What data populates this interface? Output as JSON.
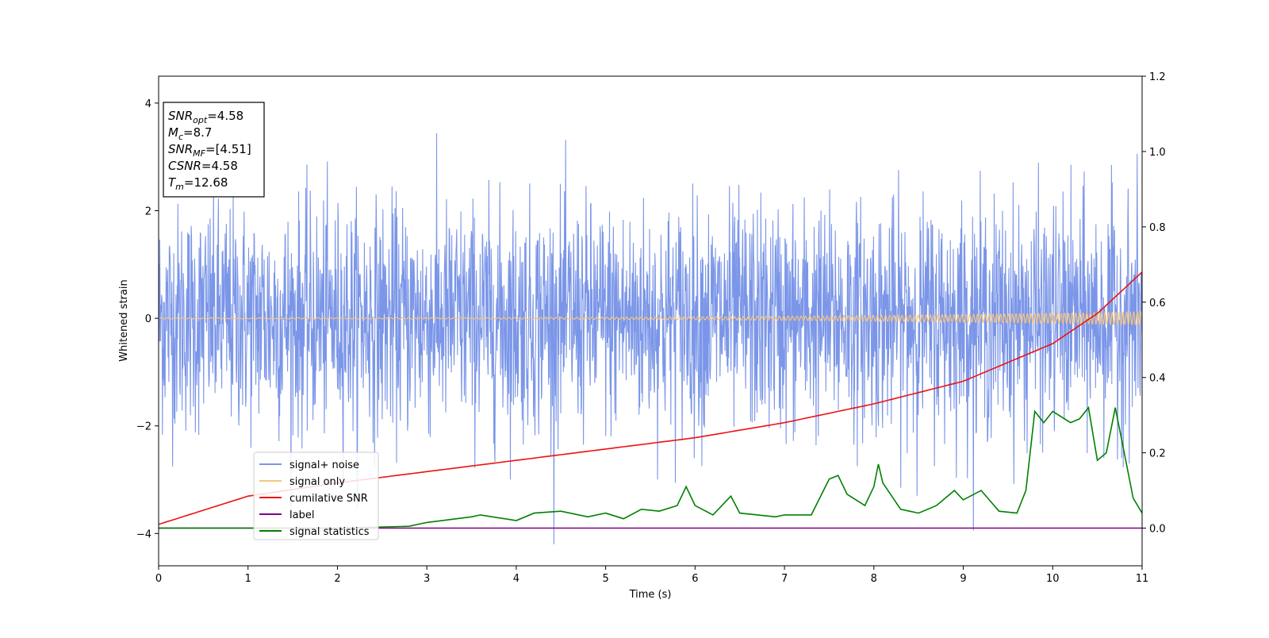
{
  "chart_data": {
    "type": "line",
    "title": "",
    "xlabel": "Time (s)",
    "ylabel": "Whitened strain",
    "xlim": [
      0,
      11
    ],
    "ylim": [
      -4.6,
      4.5
    ],
    "ylim_right": [
      -0.1,
      1.2
    ],
    "grid": false,
    "legend_position": "lower-left",
    "x_ticks": [
      "0",
      "1",
      "2",
      "3",
      "4",
      "5",
      "6",
      "7",
      "8",
      "9",
      "10",
      "11"
    ],
    "y_ticks": [
      "4",
      "2",
      "0",
      "−2",
      "−4"
    ],
    "y_ticks_right": [
      "1.2",
      "1.0",
      "0.8",
      "0.6",
      "0.4",
      "0.2",
      "0.0"
    ],
    "annotation": [
      {
        "base": "SNR",
        "sub": "opt",
        "rest": "=4.58"
      },
      {
        "base": "M",
        "sub": "c",
        "rest": "=8.7"
      },
      {
        "base": "SNR",
        "sub": "MF",
        "rest": "=[4.51]"
      },
      {
        "base": "CSNR",
        "sub": "",
        "rest": "=4.58"
      },
      {
        "base": "T",
        "sub": "m",
        "rest": "=12.68"
      }
    ],
    "series": [
      {
        "name": "signal+ noise",
        "color": "#7b96e8",
        "axis": "left",
        "description_values": "noise band approx ±1.5 with spikes to ±3.5"
      },
      {
        "name": "signal only",
        "color": "#f5c580",
        "axis": "left",
        "amplitude_start": 0.01,
        "amplitude_end": 0.12
      },
      {
        "name": "cumilative SNR",
        "color": "#ee1111",
        "axis": "right",
        "x": [
          0,
          1,
          2,
          3,
          4,
          5,
          6,
          7,
          8,
          9,
          10,
          10.5,
          11
        ],
        "y": [
          0.01,
          0.085,
          0.12,
          0.15,
          0.18,
          0.21,
          0.24,
          0.28,
          0.33,
          0.39,
          0.49,
          0.57,
          0.68
        ]
      },
      {
        "name": "label",
        "color": "#800080",
        "axis": "right",
        "x": [
          0,
          11
        ],
        "y": [
          0.0,
          0.0
        ]
      },
      {
        "name": "signal statistics",
        "color": "#008000",
        "axis": "right",
        "x": [
          0,
          1,
          2,
          2.8,
          3.0,
          3.5,
          3.6,
          4.0,
          4.2,
          4.5,
          4.8,
          5.0,
          5.2,
          5.4,
          5.6,
          5.8,
          5.9,
          6.0,
          6.2,
          6.4,
          6.5,
          6.7,
          6.9,
          7.0,
          7.3,
          7.5,
          7.6,
          7.7,
          7.9,
          8.0,
          8.05,
          8.1,
          8.3,
          8.5,
          8.7,
          8.9,
          9.0,
          9.2,
          9.4,
          9.6,
          9.7,
          9.8,
          9.9,
          10.0,
          10.2,
          10.3,
          10.4,
          10.5,
          10.6,
          10.7,
          10.8,
          10.9,
          11.0
        ],
        "y": [
          0.0,
          0.0,
          0.0,
          0.005,
          0.015,
          0.03,
          0.035,
          0.02,
          0.04,
          0.045,
          0.03,
          0.04,
          0.025,
          0.05,
          0.045,
          0.06,
          0.11,
          0.06,
          0.035,
          0.085,
          0.04,
          0.035,
          0.03,
          0.035,
          0.035,
          0.13,
          0.14,
          0.09,
          0.06,
          0.11,
          0.17,
          0.12,
          0.05,
          0.04,
          0.06,
          0.1,
          0.075,
          0.1,
          0.045,
          0.04,
          0.1,
          0.31,
          0.28,
          0.31,
          0.28,
          0.29,
          0.32,
          0.18,
          0.2,
          0.32,
          0.2,
          0.08,
          0.04
        ]
      }
    ]
  }
}
